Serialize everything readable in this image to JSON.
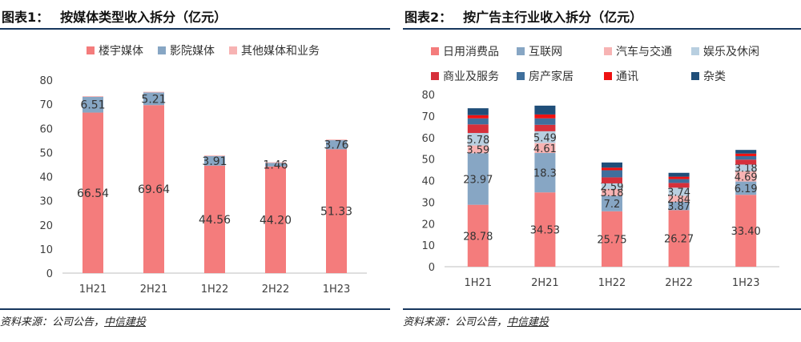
{
  "colors": {
    "rule": "#17375e",
    "axis": "#bfbfbf",
    "tick_text": "#404040"
  },
  "panel1": {
    "fig_label": "图表1：",
    "title": "按媒体类型收入拆分（亿元）",
    "source_prefix": "资料来源：公司公告，",
    "source_brand": "中信建投"
  },
  "panel2": {
    "fig_label": "图表2：",
    "title": "按广告主行业收入拆分（亿元）",
    "source_prefix": "资料来源：公司公告，",
    "source_brand": "中信建投"
  },
  "chart_data": [
    {
      "type": "bar",
      "stacked": true,
      "categories": [
        "1H21",
        "2H21",
        "1H22",
        "2H22",
        "1H23"
      ],
      "ylim": [
        0,
        80
      ],
      "yticks": [
        0,
        10,
        20,
        30,
        40,
        50,
        60,
        70,
        80
      ],
      "legend_position": "top",
      "series": [
        {
          "name": "楼宇媒体",
          "color": "#f47c7c",
          "values": [
            66.54,
            69.64,
            44.56,
            44.2,
            51.33
          ],
          "labels": [
            "66.54",
            "69.64",
            "44.56",
            "44.20",
            "51.33"
          ]
        },
        {
          "name": "影院媒体",
          "color": "#87a6c4",
          "values": [
            6.51,
            5.21,
            3.91,
            1.46,
            3.76
          ],
          "labels": [
            "6.51",
            "5.21",
            "3.91",
            "1.46",
            "3.76"
          ]
        },
        {
          "name": "其他媒体和业务",
          "color": "#f7b3b3",
          "values": [
            0.3,
            0.3,
            0.3,
            0.3,
            0.3
          ],
          "labels": [
            "",
            "",
            "",
            "",
            ""
          ]
        }
      ]
    },
    {
      "type": "bar",
      "stacked": true,
      "categories": [
        "1H21",
        "2H21",
        "1H22",
        "2H22",
        "1H23"
      ],
      "ylim": [
        0,
        80
      ],
      "yticks": [
        0,
        10,
        20,
        30,
        40,
        50,
        60,
        70,
        80
      ],
      "legend_position": "top",
      "series": [
        {
          "name": "日用消费品",
          "color": "#f47c7c",
          "values": [
            28.78,
            34.53,
            25.75,
            26.27,
            33.4
          ],
          "labels": [
            "28.78",
            "34.53",
            "25.75",
            "26.27",
            "33.40"
          ]
        },
        {
          "name": "互联网",
          "color": "#87a6c4",
          "values": [
            23.97,
            18.3,
            7.2,
            3.87,
            6.19
          ],
          "labels": [
            "23.97",
            "18.3",
            "7.2",
            "3.87",
            "6.19"
          ]
        },
        {
          "name": "汽车与交通",
          "color": "#f7b3b3",
          "values": [
            3.59,
            4.61,
            3.18,
            2.84,
            4.69
          ],
          "labels": [
            "3.59",
            "4.61",
            "3.18",
            "2.84",
            "4.69"
          ]
        },
        {
          "name": "娱乐及休闲",
          "color": "#b8cfe0",
          "values": [
            5.78,
            5.49,
            2.59,
            3.74,
            3.18
          ],
          "labels": [
            "5.78",
            "5.49",
            "2.59",
            "3.74",
            "3.18"
          ]
        },
        {
          "name": "商业及服务",
          "color": "#d6303b",
          "values": [
            4.0,
            3.0,
            2.8,
            2.2,
            2.3
          ],
          "labels": [
            "",
            "",
            "",
            "",
            ""
          ]
        },
        {
          "name": "房产家居",
          "color": "#3f6f9c",
          "values": [
            2.8,
            3.0,
            3.3,
            1.8,
            1.6
          ],
          "labels": [
            "",
            "",
            "",
            "",
            ""
          ]
        },
        {
          "name": "通讯",
          "color": "#ee1111",
          "values": [
            1.5,
            1.8,
            1.2,
            1.1,
            1.2
          ],
          "labels": [
            "",
            "",
            "",
            "",
            ""
          ]
        },
        {
          "name": "杂类",
          "color": "#1f4e79",
          "values": [
            3.2,
            4.1,
            2.4,
            1.8,
            1.7
          ],
          "labels": [
            "",
            "",
            "",
            "",
            ""
          ]
        }
      ]
    }
  ]
}
